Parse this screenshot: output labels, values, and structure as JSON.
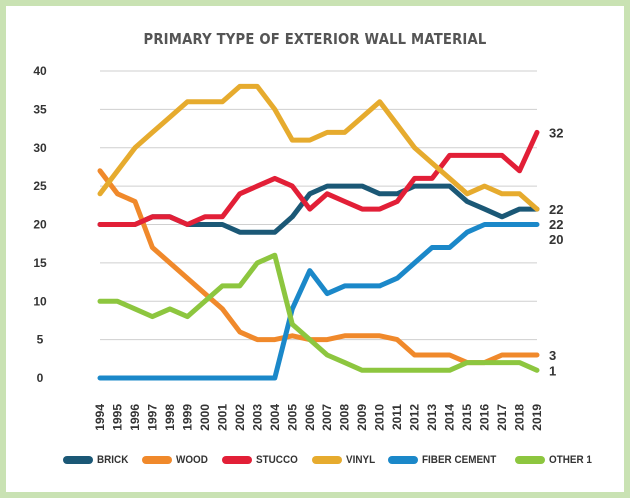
{
  "chart_data": {
    "type": "line",
    "title": "PRIMARY TYPE OF EXTERIOR WALL MATERIAL",
    "xlabel": "",
    "ylabel": "",
    "ylim": [
      0,
      40
    ],
    "yticks": [
      "0",
      "5",
      "10",
      "15",
      "20",
      "25",
      "30",
      "35",
      "40"
    ],
    "x": [
      "1994",
      "1995",
      "1996",
      "1997",
      "1998",
      "1999",
      "2000",
      "2001",
      "2002",
      "2003",
      "2004",
      "2005",
      "2006",
      "2007",
      "2008",
      "2009",
      "2010",
      "2011",
      "2012",
      "2013",
      "2014",
      "2015",
      "2016",
      "2017",
      "2018",
      "2019"
    ],
    "grid": "horizontal",
    "legend_position": "bottom",
    "series": [
      {
        "name": "BRICK",
        "color": "#1b5876",
        "end_label": "22",
        "values": [
          20,
          20,
          20,
          21,
          21,
          20,
          20,
          20,
          19,
          19,
          19,
          21,
          24,
          25,
          25,
          25,
          24,
          24,
          25,
          25,
          25,
          23,
          22,
          21,
          22,
          22
        ]
      },
      {
        "name": "WOOD",
        "color": "#f0892b",
        "end_label": "3",
        "values": [
          27,
          24,
          23,
          17,
          15,
          13,
          11,
          9,
          6,
          5,
          5,
          5.5,
          5,
          5,
          5.5,
          5.5,
          5.5,
          5,
          3,
          3,
          3,
          2,
          2,
          3,
          3,
          3
        ]
      },
      {
        "name": "STUCCO",
        "color": "#e21f37",
        "end_label": "32",
        "values": [
          20,
          20,
          20,
          21,
          21,
          20,
          21,
          21,
          24,
          25,
          26,
          25,
          22,
          24,
          23,
          22,
          22,
          23,
          26,
          26,
          29,
          29,
          29,
          29,
          27,
          32
        ]
      },
      {
        "name": "VINYL",
        "color": "#e6ab2e",
        "end_label": "22",
        "values": [
          24,
          27,
          30,
          32,
          34,
          36,
          36,
          36,
          38,
          38,
          35,
          31,
          31,
          32,
          32,
          34,
          36,
          33,
          30,
          28,
          26,
          24,
          25,
          24,
          24,
          22
        ]
      },
      {
        "name": "FIBER CEMENT",
        "color": "#1b88c9",
        "end_label": "20",
        "values": [
          0,
          0,
          0,
          0,
          0,
          0,
          0,
          0,
          0,
          0,
          0,
          9,
          14,
          11,
          12,
          12,
          12,
          13,
          15,
          17,
          17,
          19,
          20,
          20,
          20,
          20
        ]
      },
      {
        "name": "OTHER 1",
        "color": "#8dc63f",
        "end_label": "1",
        "values": [
          10,
          10,
          9,
          8,
          9,
          8,
          10,
          12,
          12,
          15,
          16,
          7,
          5,
          3,
          2,
          1,
          1,
          1,
          1,
          1,
          1,
          2,
          2,
          2,
          2,
          1
        ]
      }
    ]
  }
}
